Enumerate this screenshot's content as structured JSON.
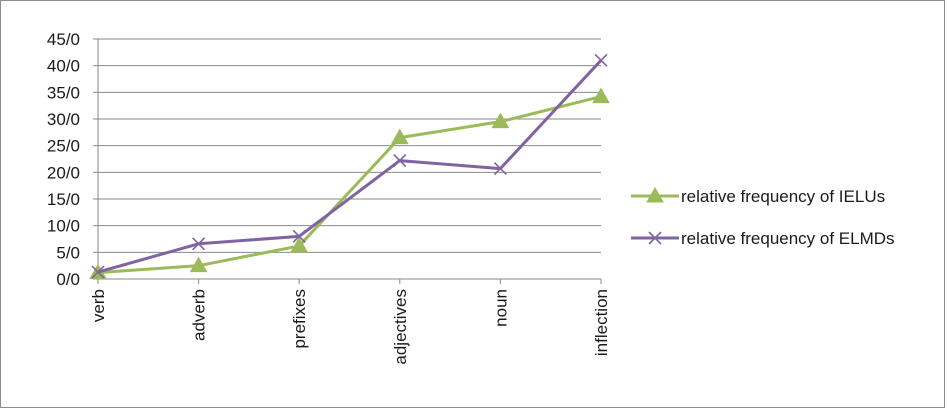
{
  "chart_data": {
    "type": "line",
    "categories": [
      "verb",
      "adverb",
      "prefixes",
      "adjectives",
      "noun",
      "inflection"
    ],
    "y_ticks": [
      "0/0",
      "5/0",
      "10/0",
      "15/0",
      "20/0",
      "25/0",
      "30/0",
      "35/0",
      "40/0",
      "45/0"
    ],
    "ylim": [
      0,
      45
    ],
    "grid": "horizontal",
    "legend_position": "right",
    "series": [
      {
        "name": "relative frequency of IELUs",
        "values": [
          1.2,
          2.5,
          6.2,
          26.5,
          29.5,
          34.2
        ],
        "color": "#9bbb59",
        "marker": "triangle"
      },
      {
        "name": "relative frequency of ELMDs",
        "values": [
          1.3,
          6.6,
          8.0,
          22.2,
          20.7,
          41.0
        ],
        "color": "#8064a2",
        "marker": "x"
      }
    ]
  }
}
